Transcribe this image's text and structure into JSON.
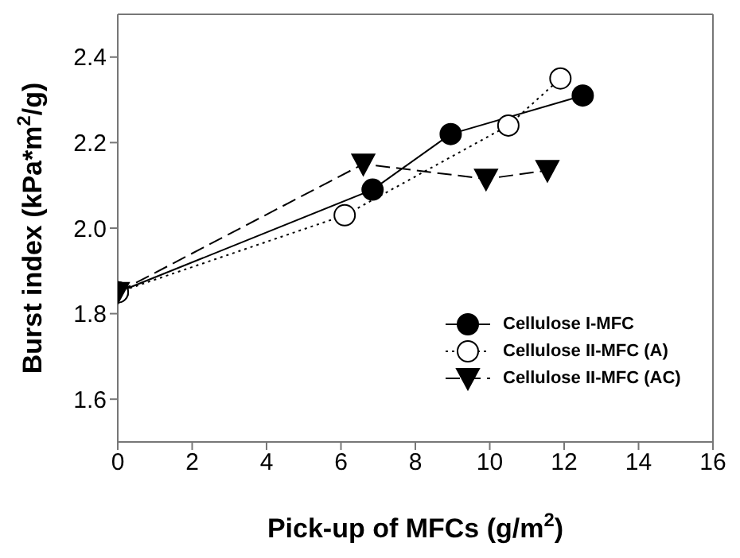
{
  "chart_data": {
    "type": "line",
    "xlabel": "Pick-up of MFCs (g/m$^{2}$)",
    "ylabel": "Burst index (kPa*m$^{2}$/g)",
    "xlim": [
      0,
      16
    ],
    "xticks": [
      0,
      2,
      4,
      6,
      8,
      10,
      12,
      14,
      16
    ],
    "ylim": [
      1.5,
      2.5
    ],
    "yticks": [
      {
        "value": 1.6,
        "label": "1.6"
      },
      {
        "value": 1.8,
        "label": "1.8"
      },
      {
        "value": 2.0,
        "label": "2.0"
      },
      {
        "value": 2.2,
        "label": "2.2"
      },
      {
        "value": 2.4,
        "label": "2.4"
      }
    ],
    "legend": "bottom right",
    "series": [
      {
        "name": "Cellulose I-MFC",
        "color": "#000000",
        "marker": "circle",
        "line_style": "solid",
        "x": [
          0,
          6.85,
          8.95,
          12.5
        ],
        "values": [
          1.85,
          2.09,
          2.22,
          2.31
        ]
      },
      {
        "name": "Cellulose II-MFC (A)",
        "color": "#000000",
        "marker": "circle",
        "line_style": "dotted",
        "x": [
          0,
          6.1,
          10.5,
          11.9
        ],
        "values": [
          1.85,
          2.03,
          2.24,
          2.35
        ]
      },
      {
        "name": "Cellulose II-MFC (AC)",
        "color": "#000000",
        "marker": "triangle",
        "line_style": "dashed",
        "x": [
          0,
          6.6,
          9.9,
          11.55
        ],
        "values": [
          1.85,
          2.15,
          2.115,
          2.135
        ]
      }
    ]
  }
}
